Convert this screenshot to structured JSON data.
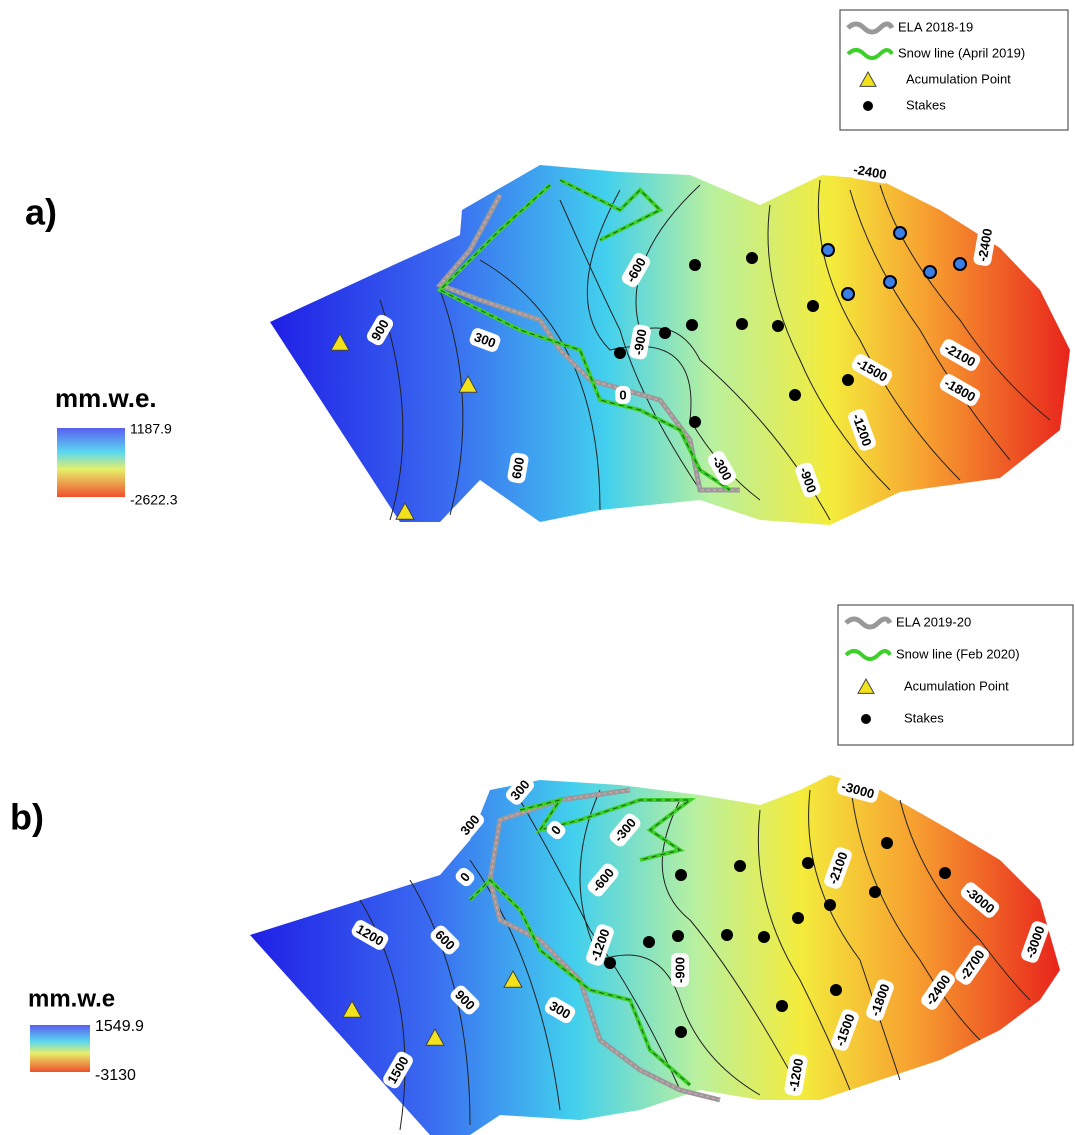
{
  "panels": [
    {
      "label": "a)",
      "legend": [
        "ELA 2018-19",
        "Snow line (April 2019)",
        "Acumulation Point",
        "Stakes"
      ],
      "colorbar": {
        "title": "mm.w.e.",
        "max": 1187.9,
        "min": -2622.3
      },
      "contour_labels": [
        900,
        300,
        600,
        0,
        -600,
        -900,
        -300,
        -900,
        -1200,
        -1500,
        -1800,
        -2100,
        -2400,
        -2400
      ]
    },
    {
      "label": "b)",
      "legend": [
        "ELA 2019-20",
        "Snow line (Feb 2020)",
        "Acumulation Point",
        "Stakes"
      ],
      "colorbar": {
        "title": "mm.w.e",
        "max": 1549.9,
        "min": -3130
      },
      "contour_labels": [
        300,
        300,
        0,
        -300,
        -600,
        0,
        1200,
        600,
        900,
        300,
        -1200,
        -900,
        -1200,
        -1500,
        -1800,
        -2100,
        -2400,
        -2700,
        -3000,
        -3000,
        -3000,
        1500
      ]
    }
  ]
}
